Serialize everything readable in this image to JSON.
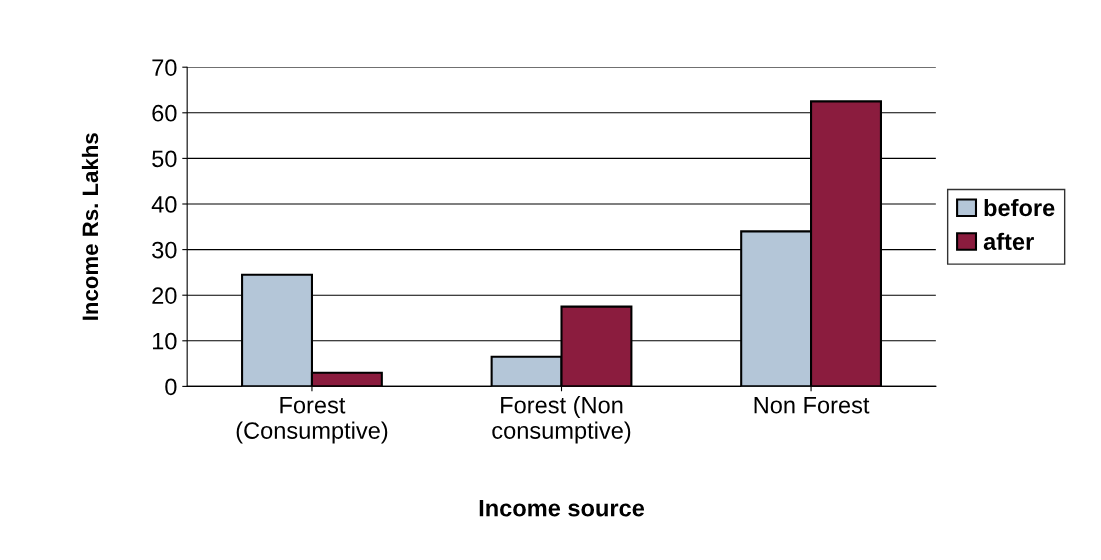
{
  "chart_data": {
    "type": "bar",
    "xlabel": "Income source",
    "ylabel": "Income Rs. Lakhs",
    "categories": [
      "Forest\n(Consumptive)",
      "Forest (Non\nconsumptive)",
      "Non Forest"
    ],
    "series": [
      {
        "name": "before",
        "color": "#b4c6d8",
        "values": [
          24.5,
          6.5,
          34
        ]
      },
      {
        "name": "after",
        "color": "#8b1c3e",
        "values": [
          3,
          17.5,
          62.5
        ]
      }
    ],
    "ylim": [
      0,
      70
    ],
    "yticks": [
      0,
      10,
      20,
      30,
      40,
      50,
      60,
      70
    ],
    "grid": "y",
    "legend": "right"
  }
}
